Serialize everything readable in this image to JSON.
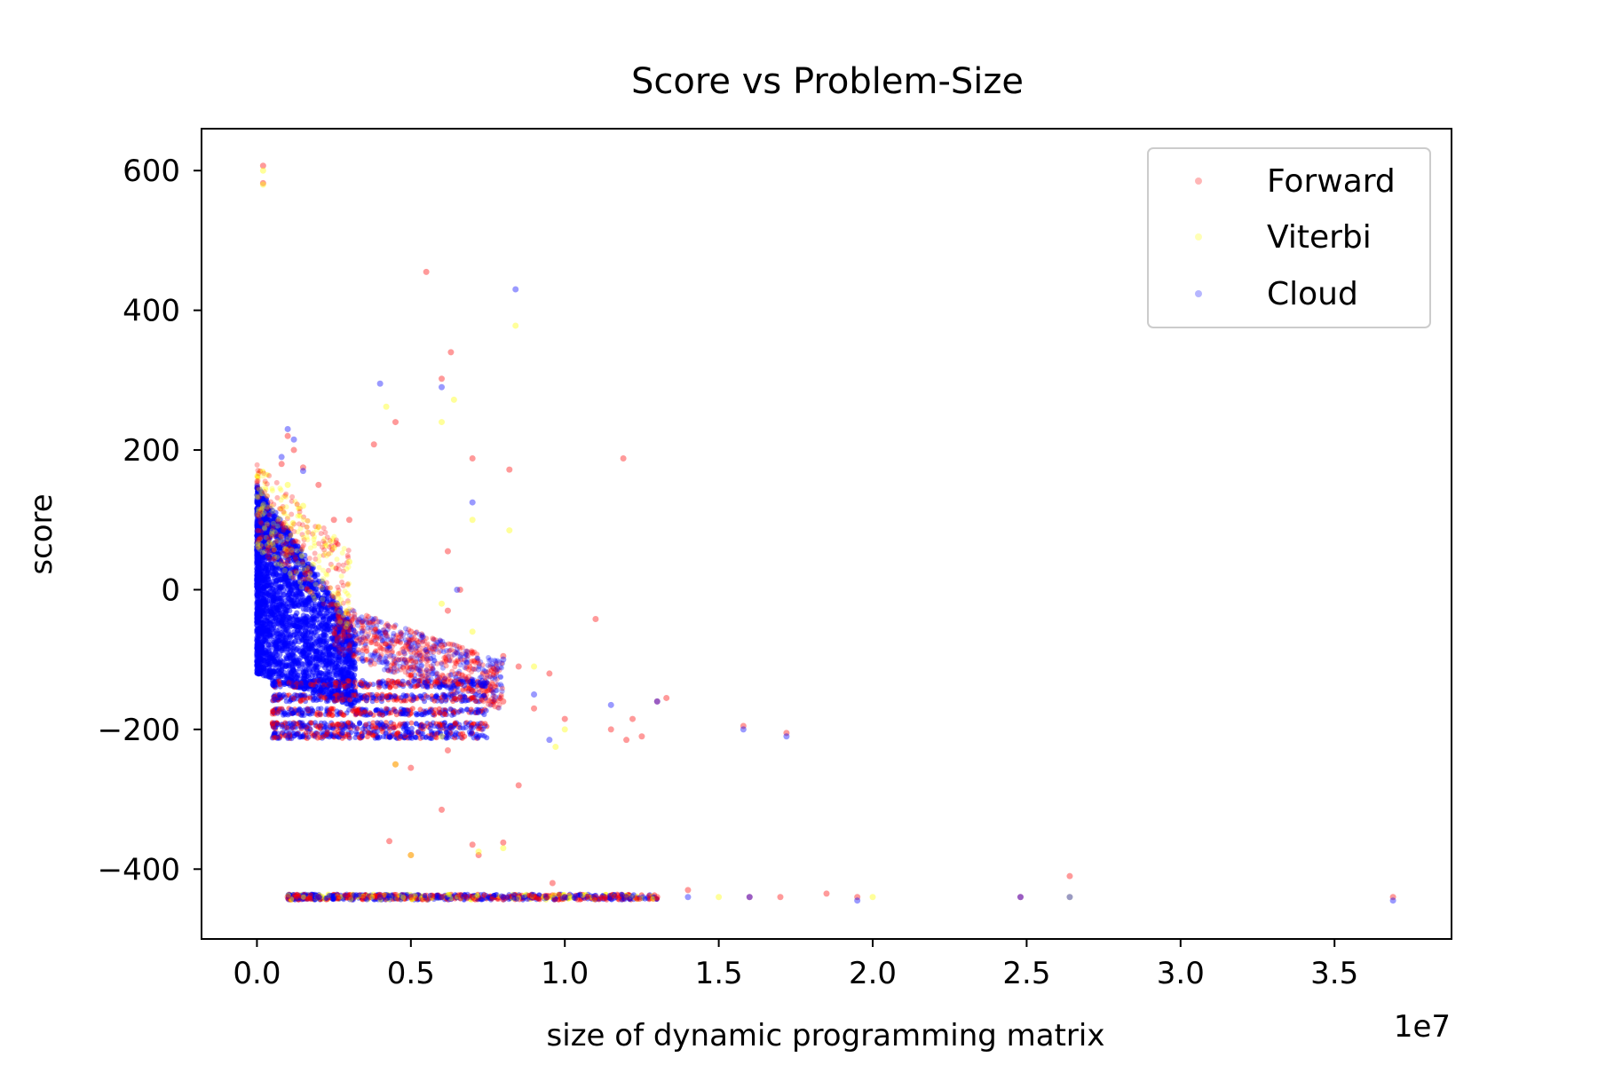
{
  "chart_data": {
    "type": "scatter",
    "title": "Score vs Problem-Size",
    "xlabel": "size of dynamic programming matrix",
    "ylabel": "score",
    "x_offset_text": "1e7",
    "x_scale_exponent": 7,
    "xlim": [
      -0.18,
      3.88
    ],
    "ylim": [
      -500,
      660
    ],
    "xticks": [
      0.0,
      0.5,
      1.0,
      1.5,
      2.0,
      2.5,
      3.0,
      3.5
    ],
    "xtick_labels": [
      "0.0",
      "0.5",
      "1.0",
      "1.5",
      "2.0",
      "2.5",
      "3.0",
      "3.5"
    ],
    "yticks": [
      -400,
      -200,
      0,
      200,
      400,
      600
    ],
    "ytick_labels": [
      "−400",
      "−200",
      "0",
      "200",
      "400",
      "600"
    ],
    "grid": false,
    "legend_position": "upper-right",
    "series": [
      {
        "name": "Forward",
        "color": "#ff0000",
        "alpha": 0.18,
        "points": [
          [
            0.02,
            607
          ],
          [
            0.02,
            582
          ],
          [
            0.55,
            455
          ],
          [
            0.6,
            302
          ],
          [
            0.63,
            340
          ],
          [
            0.45,
            240
          ],
          [
            0.38,
            208
          ],
          [
            0.1,
            220
          ],
          [
            0.12,
            200
          ],
          [
            0.08,
            180
          ],
          [
            0.15,
            175
          ],
          [
            0.2,
            150
          ],
          [
            0.25,
            100
          ],
          [
            0.3,
            100
          ],
          [
            0.7,
            188
          ],
          [
            0.82,
            172
          ],
          [
            1.19,
            188
          ],
          [
            0.62,
            55
          ],
          [
            0.66,
            0
          ],
          [
            0.62,
            -30
          ],
          [
            1.1,
            -42
          ],
          [
            0.5,
            -60
          ],
          [
            0.6,
            -80
          ],
          [
            0.7,
            -90
          ],
          [
            0.8,
            -95
          ],
          [
            0.85,
            -110
          ],
          [
            0.95,
            -120
          ],
          [
            0.7,
            -145
          ],
          [
            0.8,
            -160
          ],
          [
            0.9,
            -170
          ],
          [
            1.0,
            -185
          ],
          [
            1.15,
            -200
          ],
          [
            1.2,
            -215
          ],
          [
            1.25,
            -210
          ],
          [
            1.3,
            -160
          ],
          [
            1.33,
            -155
          ],
          [
            1.22,
            -185
          ],
          [
            1.58,
            -195
          ],
          [
            1.72,
            -205
          ],
          [
            0.62,
            -230
          ],
          [
            0.45,
            -250
          ],
          [
            0.5,
            -255
          ],
          [
            0.85,
            -280
          ],
          [
            0.6,
            -315
          ],
          [
            0.43,
            -360
          ],
          [
            0.5,
            -380
          ],
          [
            0.7,
            -365
          ],
          [
            0.8,
            -362
          ],
          [
            0.72,
            -380
          ],
          [
            0.96,
            -420
          ],
          [
            1.4,
            -430
          ],
          [
            1.85,
            -435
          ],
          [
            2.64,
            -410
          ],
          [
            0.1,
            -440
          ],
          [
            0.2,
            -440
          ],
          [
            0.3,
            -440
          ],
          [
            0.4,
            -440
          ],
          [
            0.5,
            -440
          ],
          [
            0.6,
            -440
          ],
          [
            0.7,
            -440
          ],
          [
            0.8,
            -440
          ],
          [
            0.9,
            -440
          ],
          [
            1.0,
            -440
          ],
          [
            1.1,
            -440
          ],
          [
            1.2,
            -440
          ],
          [
            1.3,
            -440
          ],
          [
            1.6,
            -440
          ],
          [
            1.7,
            -440
          ],
          [
            1.95,
            -440
          ],
          [
            2.48,
            -440
          ],
          [
            3.69,
            -440
          ]
        ]
      },
      {
        "name": "Viterbi",
        "color": "#ffff00",
        "alpha": 0.18,
        "points": [
          [
            0.02,
            600
          ],
          [
            0.02,
            580
          ],
          [
            0.84,
            378
          ],
          [
            0.64,
            272
          ],
          [
            0.42,
            262
          ],
          [
            0.6,
            240
          ],
          [
            0.7,
            100
          ],
          [
            0.82,
            85
          ],
          [
            0.1,
            150
          ],
          [
            0.15,
            120
          ],
          [
            0.2,
            90
          ],
          [
            0.25,
            60
          ],
          [
            0.3,
            40
          ],
          [
            0.6,
            -20
          ],
          [
            0.7,
            -60
          ],
          [
            0.9,
            -110
          ],
          [
            1.0,
            -200
          ],
          [
            0.97,
            -225
          ],
          [
            0.6,
            -210
          ],
          [
            0.45,
            -250
          ],
          [
            0.8,
            -370
          ],
          [
            0.72,
            -375
          ],
          [
            0.5,
            -380
          ],
          [
            1.5,
            -440
          ],
          [
            2.0,
            -440
          ],
          [
            2.64,
            -440
          ]
        ]
      },
      {
        "name": "Cloud",
        "color": "#0000ff",
        "alpha": 0.18,
        "points": [
          [
            0.84,
            430
          ],
          [
            0.4,
            295
          ],
          [
            0.1,
            230
          ],
          [
            0.12,
            215
          ],
          [
            0.08,
            190
          ],
          [
            0.15,
            170
          ],
          [
            0.6,
            290
          ],
          [
            0.7,
            125
          ],
          [
            0.65,
            0
          ],
          [
            0.8,
            -100
          ],
          [
            0.9,
            -150
          ],
          [
            1.15,
            -165
          ],
          [
            1.58,
            -200
          ],
          [
            1.72,
            -210
          ],
          [
            1.3,
            -160
          ],
          [
            0.95,
            -215
          ],
          [
            0.2,
            -440
          ],
          [
            0.4,
            -440
          ],
          [
            0.6,
            -440
          ],
          [
            0.8,
            -440
          ],
          [
            1.0,
            -440
          ],
          [
            1.2,
            -440
          ],
          [
            1.4,
            -440
          ],
          [
            1.6,
            -440
          ],
          [
            1.95,
            -445
          ],
          [
            2.48,
            -440
          ],
          [
            2.64,
            -440
          ],
          [
            3.69,
            -445
          ]
        ]
      }
    ]
  }
}
